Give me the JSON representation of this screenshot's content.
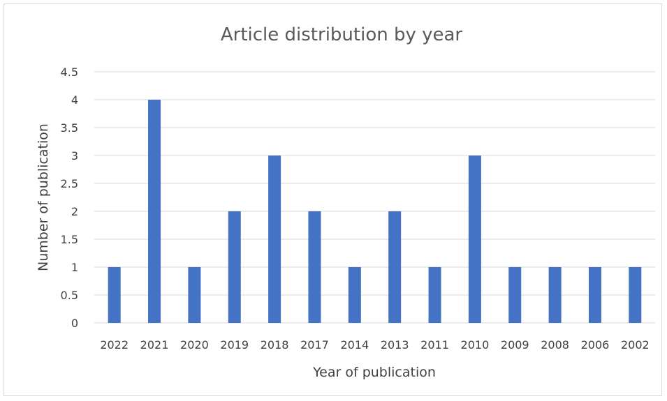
{
  "chart_data": {
    "type": "bar",
    "title": "Article distribution by year",
    "xlabel": "Year of publication",
    "ylabel": "Number of publication",
    "categories": [
      "2022",
      "2021",
      "2020",
      "2019",
      "2018",
      "2017",
      "2014",
      "2013",
      "2011",
      "2010",
      "2009",
      "2008",
      "2006",
      "2002"
    ],
    "values": [
      1,
      4,
      1,
      2,
      3,
      2,
      1,
      2,
      1,
      3,
      1,
      1,
      1,
      1
    ],
    "ylim": [
      0,
      4.5
    ],
    "yticks": [
      "0",
      "0.5",
      "1",
      "1.5",
      "2",
      "2.5",
      "3",
      "3.5",
      "4",
      "4.5"
    ],
    "grid": true,
    "legend": "none",
    "bar_color": "#4472c4"
  }
}
